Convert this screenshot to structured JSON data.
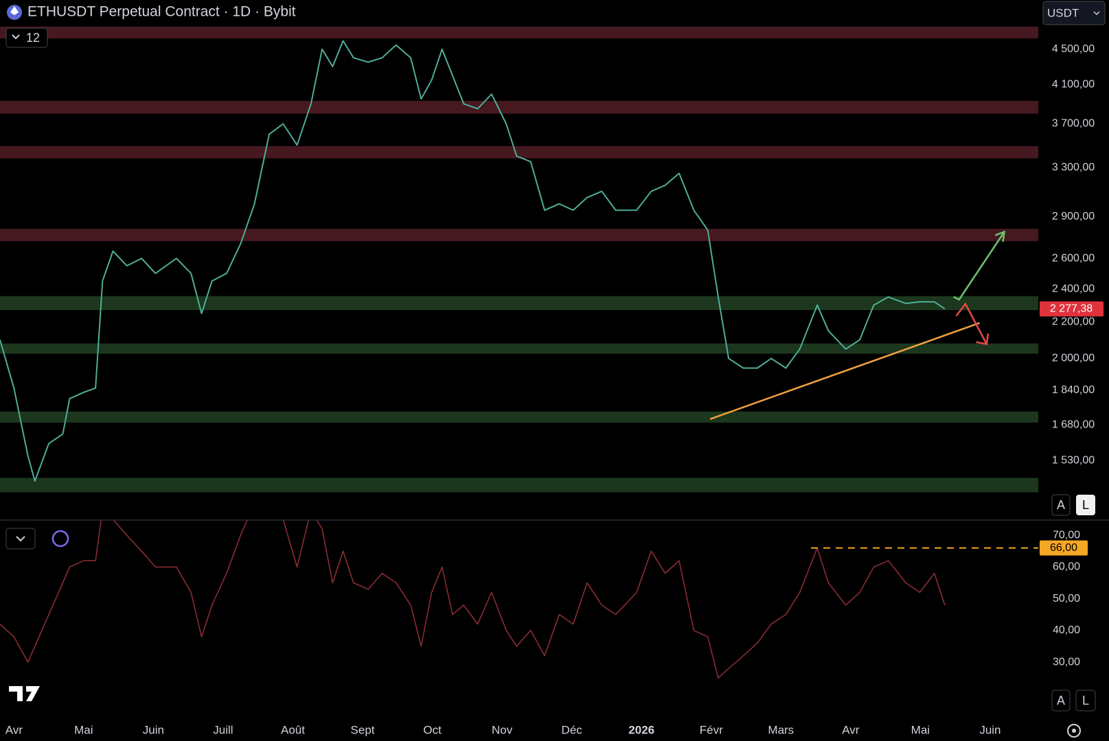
{
  "ui": {
    "title": "ETHUSDT Perpetual Contract · 1D · Bybit",
    "interval_count": "12",
    "currency": "USDT",
    "auto_top": "A",
    "log_top": "L",
    "auto_bottom": "A",
    "log_bottom": "L"
  },
  "chart_data": [
    {
      "type": "line",
      "log_scale": true,
      "color": "#4fae9a",
      "x": [
        -0.2,
        0,
        0.2,
        0.3,
        0.5,
        0.7,
        0.8,
        1.0,
        1.17,
        1.27,
        1.42,
        1.62,
        1.83,
        2.03,
        2.33,
        2.54,
        2.69,
        2.84,
        3.05,
        3.25,
        3.45,
        3.66,
        3.86,
        4.06,
        4.26,
        4.42,
        4.57,
        4.72,
        4.87,
        5.08,
        5.28,
        5.48,
        5.69,
        5.84,
        5.99,
        6.14,
        6.29,
        6.45,
        6.65,
        6.85,
        7.06,
        7.21,
        7.41,
        7.61,
        7.82,
        8.02,
        8.22,
        8.43,
        8.63,
        8.93,
        9.14,
        9.34,
        9.54,
        9.75,
        9.95,
        10.1,
        10.25,
        10.46,
        10.66,
        10.86,
        11.07,
        11.27,
        11.52,
        11.68,
        11.93,
        12.13,
        12.33,
        12.54,
        12.79,
        12.99,
        13.2,
        13.35
      ],
      "values": [
        2100,
        1850,
        1550,
        1450,
        1600,
        1640,
        1800,
        1830,
        1850,
        2450,
        2650,
        2550,
        2600,
        2500,
        2600,
        2500,
        2250,
        2450,
        2500,
        2700,
        3000,
        3600,
        3700,
        3500,
        3900,
        4500,
        4300,
        4600,
        4400,
        4350,
        4400,
        4550,
        4400,
        3950,
        4150,
        4500,
        4200,
        3900,
        3850,
        4000,
        3700,
        3400,
        3350,
        2950,
        3000,
        2950,
        3050,
        3100,
        2950,
        2950,
        3100,
        3150,
        3250,
        2950,
        2800,
        2350,
        2000,
        1950,
        1950,
        2000,
        1950,
        2050,
        2300,
        2150,
        2050,
        2100,
        2300,
        2350,
        2310,
        2320,
        2320,
        2277.38
      ],
      "xlim": [
        -0.2,
        14.69
      ],
      "xticks": [
        {
          "value": 0,
          "label": "Avr"
        },
        {
          "value": 1,
          "label": "Mai"
        },
        {
          "value": 2,
          "label": "Juin"
        },
        {
          "value": 3,
          "label": "Juill"
        },
        {
          "value": 4,
          "label": "Août"
        },
        {
          "value": 5,
          "label": "Sept"
        },
        {
          "value": 6,
          "label": "Oct"
        },
        {
          "value": 7,
          "label": "Nov"
        },
        {
          "value": 8,
          "label": "Déc"
        },
        {
          "value": 9,
          "label": "2026"
        },
        {
          "value": 10,
          "label": "Févr"
        },
        {
          "value": 11,
          "label": "Mars"
        },
        {
          "value": 12,
          "label": "Avr"
        },
        {
          "value": 13,
          "label": "Mai"
        },
        {
          "value": 14,
          "label": "Juin"
        }
      ],
      "ylim": [
        1316,
        5120
      ],
      "yticks": [
        {
          "value": 1530,
          "label": "1 530,00"
        },
        {
          "value": 1680,
          "label": "1 680,00"
        },
        {
          "value": 1840,
          "label": "1 840,00"
        },
        {
          "value": 2000,
          "label": "2 000,00"
        },
        {
          "value": 2200,
          "label": "2 200,00"
        },
        {
          "value": 2400,
          "label": "2 400,00"
        },
        {
          "value": 2600,
          "label": "2 600,00"
        },
        {
          "value": 2900,
          "label": "2 900,00"
        },
        {
          "value": 3300,
          "label": "3 300,00"
        },
        {
          "value": 3700,
          "label": "3 700,00"
        },
        {
          "value": 4100,
          "label": "4 100,00"
        },
        {
          "value": 4500,
          "label": "4 500,00"
        }
      ],
      "zones": [
        {
          "low": 4630,
          "high": 4775,
          "color": "#4a1a22"
        },
        {
          "low": 3800,
          "high": 3930,
          "color": "#4a1a22"
        },
        {
          "low": 3380,
          "high": 3490,
          "color": "#4a1a22"
        },
        {
          "low": 2720,
          "high": 2810,
          "color": "#4a1a22"
        },
        {
          "low": 2270,
          "high": 2355,
          "color": "#1d3a1f"
        },
        {
          "low": 2025,
          "high": 2080,
          "color": "#1d3a1f"
        },
        {
          "low": 1690,
          "high": 1740,
          "color": "#1d3a1f"
        },
        {
          "low": 1408,
          "high": 1462,
          "color": "#1d3a1f"
        }
      ],
      "last_price": {
        "value": 2277.38,
        "label": "2 277,38"
      }
    },
    {
      "type": "line",
      "color": "#8a2c33",
      "x": [
        -0.2,
        0,
        0.2,
        0.3,
        0.5,
        0.7,
        0.8,
        1.0,
        1.17,
        1.27,
        1.42,
        1.62,
        1.83,
        2.03,
        2.33,
        2.54,
        2.69,
        2.84,
        3.05,
        3.25,
        3.45,
        3.66,
        3.86,
        4.06,
        4.26,
        4.42,
        4.57,
        4.72,
        4.87,
        5.08,
        5.28,
        5.48,
        5.69,
        5.84,
        5.99,
        6.14,
        6.29,
        6.45,
        6.65,
        6.85,
        7.06,
        7.21,
        7.41,
        7.61,
        7.82,
        8.02,
        8.22,
        8.43,
        8.63,
        8.93,
        9.14,
        9.34,
        9.54,
        9.75,
        9.95,
        10.1,
        10.25,
        10.46,
        10.66,
        10.86,
        11.07,
        11.27,
        11.52,
        11.68,
        11.93,
        12.13,
        12.33,
        12.54,
        12.79,
        12.99,
        13.2,
        13.35
      ],
      "values": [
        42,
        38,
        30,
        35,
        45,
        55,
        60,
        62,
        62,
        78,
        75,
        70,
        65,
        60,
        60,
        52,
        38,
        48,
        58,
        70,
        80,
        82,
        75,
        60,
        78,
        72,
        55,
        65,
        55,
        53,
        58,
        55,
        48,
        35,
        52,
        60,
        45,
        48,
        42,
        52,
        40,
        35,
        40,
        32,
        45,
        42,
        55,
        48,
        45,
        52,
        65,
        58,
        62,
        40,
        38,
        25,
        28,
        32,
        36,
        42,
        45,
        52,
        66,
        55,
        48,
        52,
        60,
        62,
        55,
        52,
        58,
        48
      ],
      "xlim": [
        -0.2,
        14.69
      ],
      "ylim": [
        12.7,
        74.8
      ],
      "yticks": [
        {
          "value": 30,
          "label": "30,00"
        },
        {
          "value": 40,
          "label": "40,00"
        },
        {
          "value": 50,
          "label": "50,00"
        },
        {
          "value": 60,
          "label": "60,00"
        },
        {
          "value": 70,
          "label": "70,00"
        }
      ],
      "level": {
        "value": 66,
        "label": "66,00",
        "color": "#f5a623"
      }
    }
  ]
}
